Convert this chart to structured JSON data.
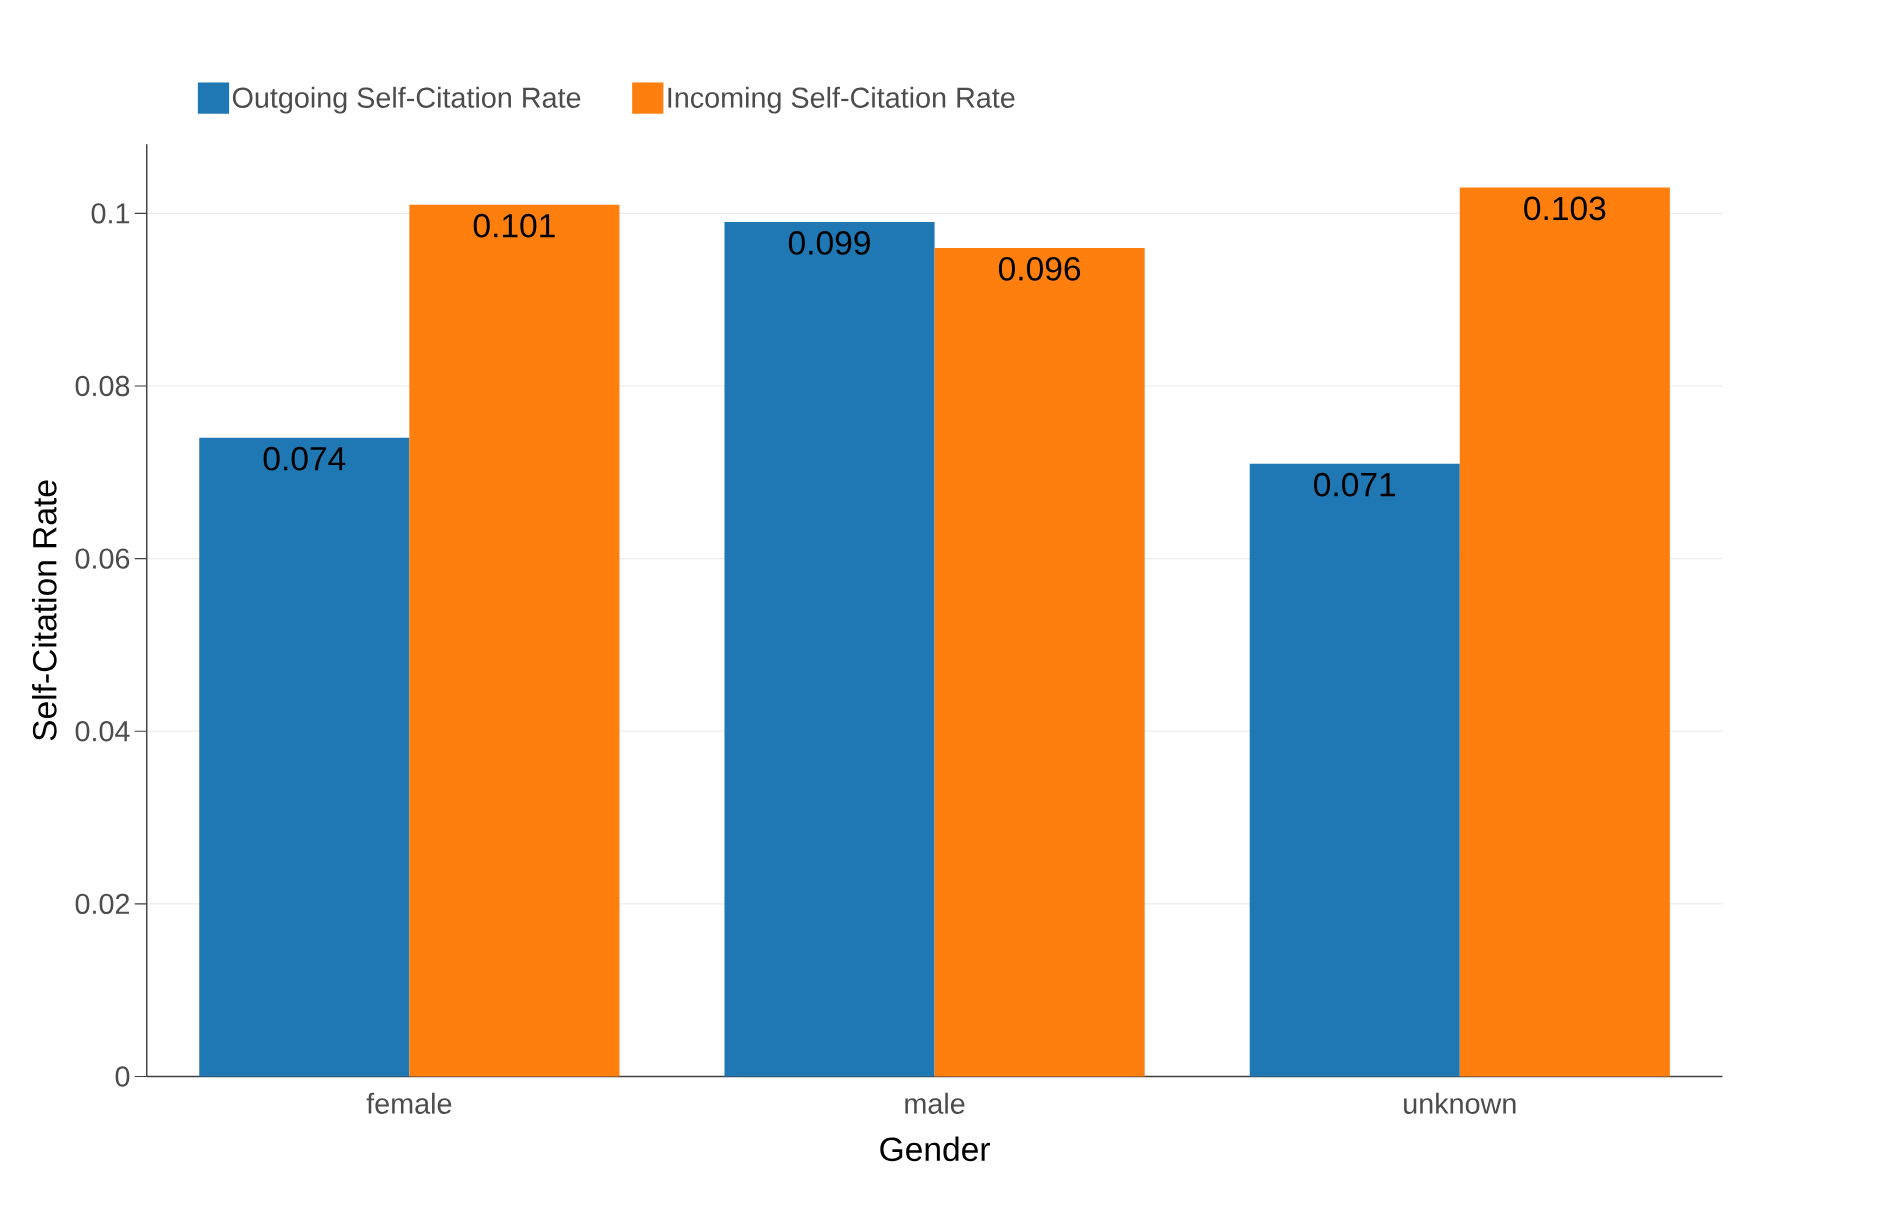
{
  "chart_data": {
    "type": "bar",
    "xlabel": "Gender",
    "ylabel": "Self-Citation Rate",
    "categories": [
      "female",
      "male",
      "unknown"
    ],
    "series": [
      {
        "name": "Outgoing Self-Citation Rate",
        "color": "#1f77b4",
        "values": [
          0.074,
          0.099,
          0.071
        ]
      },
      {
        "name": "Incoming Self-Citation Rate",
        "color": "#ff7f0e",
        "values": [
          0.101,
          0.096,
          0.103
        ]
      }
    ],
    "ylim": [
      0,
      0.108
    ],
    "yticks": [
      0,
      0.02,
      0.04,
      0.06,
      0.08,
      0.1
    ],
    "grid": "y",
    "legend": "top left",
    "data_labels": true
  }
}
